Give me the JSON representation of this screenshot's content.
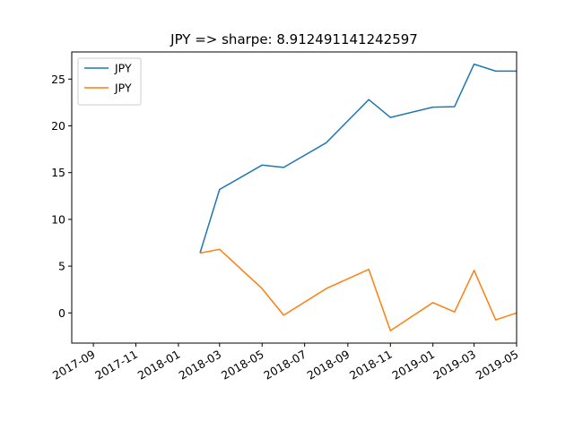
{
  "chart_data": {
    "type": "line",
    "title": "JPY => sharpe: 8.912491141242597",
    "xlabel": "",
    "ylabel": "",
    "x": [
      "2018-02-01",
      "2018-03-01",
      "2018-05-01",
      "2018-06-01",
      "2018-08-01",
      "2018-10-01",
      "2018-11-01",
      "2019-01-01",
      "2019-02-01",
      "2019-03-01",
      "2019-04-01",
      "2019-05-01"
    ],
    "series": [
      {
        "name": "JPY",
        "color": "#1f77b4",
        "values": [
          6.4,
          13.2,
          15.8,
          15.55,
          18.2,
          22.8,
          20.9,
          22.0,
          22.05,
          26.6,
          25.85,
          25.85
        ]
      },
      {
        "name": "JPY",
        "color": "#ff7f0e",
        "values": [
          6.4,
          6.8,
          2.6,
          -0.25,
          2.6,
          4.65,
          -1.9,
          1.1,
          0.1,
          4.55,
          -0.75,
          0.0
        ]
      }
    ],
    "xlim": [
      "2017-08-01",
      "2019-05-01"
    ],
    "ylim": [
      -3.23,
      27.9
    ],
    "xticks": [
      "2017-09",
      "2017-11",
      "2018-01",
      "2018-03",
      "2018-05",
      "2018-07",
      "2018-09",
      "2018-11",
      "2019-01",
      "2019-03",
      "2019-05"
    ],
    "yticks": [
      0,
      5,
      10,
      15,
      20,
      25
    ],
    "grid": false,
    "legend_position": "upper-left"
  }
}
